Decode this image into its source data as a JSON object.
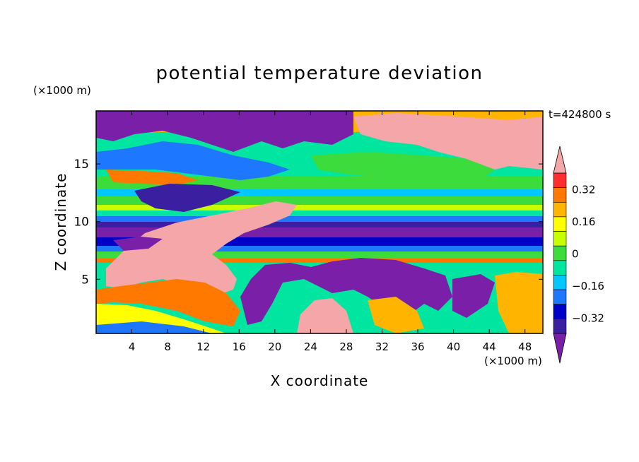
{
  "chart_data": {
    "type": "heatmap",
    "title": "potential temperature deviation",
    "xlabel": "X coordinate",
    "ylabel": "Z coordinate",
    "x_unit": "(×1000 m)",
    "y_unit": "(×1000 m)",
    "time_label": "t=424800 s",
    "xlim": [
      0,
      50
    ],
    "ylim": [
      0.3,
      19.6
    ],
    "x_ticks": [
      4,
      8,
      12,
      16,
      20,
      24,
      28,
      32,
      36,
      40,
      44,
      48
    ],
    "y_ticks": [
      5,
      10,
      15
    ],
    "colorbar": {
      "levels": [
        -0.4,
        -0.32,
        -0.24,
        -0.16,
        -0.08,
        0,
        0.08,
        0.16,
        0.24,
        0.32,
        0.4
      ],
      "tick_labels": [
        "0.32",
        "0.16",
        "0",
        "−0.16",
        "−0.32"
      ],
      "tick_values": [
        0.32,
        0.16,
        0,
        -0.16,
        -0.32
      ],
      "colors": [
        "#7a1fa8",
        "#3a1fa0",
        "#0000c8",
        "#1e78ff",
        "#00c8ff",
        "#00e6a0",
        "#3cdc3c",
        "#c8ff00",
        "#ffff00",
        "#ffb400",
        "#ff7800",
        "#ff2d2d",
        "#f4a6a8"
      ]
    },
    "background_color": "#00e6a0"
  }
}
